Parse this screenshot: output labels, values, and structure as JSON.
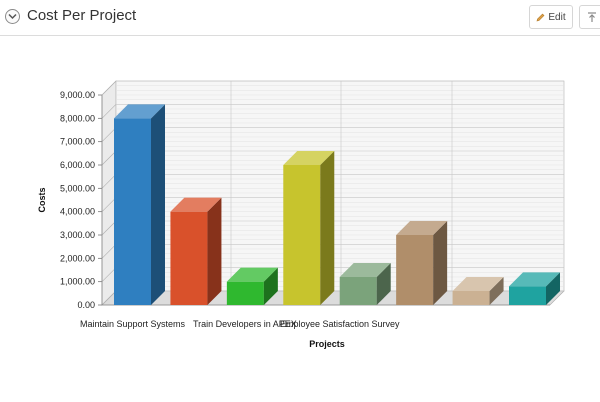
{
  "region": {
    "title": "Cost Per Project",
    "edit_label": "Edit",
    "icons": {
      "collapse": "chevron-down-icon",
      "edit": "pencil-icon",
      "top": "arrow-top-icon"
    }
  },
  "chart_data": {
    "type": "bar",
    "title": "",
    "xlabel": "Projects",
    "ylabel": "Costs",
    "ylim": [
      0,
      9000
    ],
    "yticks": [
      "0.00",
      "1,000.00",
      "2,000.00",
      "3,000.00",
      "4,000.00",
      "5,000.00",
      "6,000.00",
      "7,000.00",
      "8,000.00",
      "9,000.00"
    ],
    "xtick_labels": [
      "Maintain Support Systems",
      "Train Developers in APEX",
      "Employee Satisfaction Survey"
    ],
    "grid": true,
    "three_d": true,
    "values": [
      8000,
      4000,
      1000,
      6000,
      1200,
      3000,
      600,
      800
    ],
    "colors": [
      "#2f7fc0",
      "#d9512b",
      "#2fb82f",
      "#c7c42d",
      "#7ba37b",
      "#b08e6a",
      "#cbb193",
      "#1fa3a0"
    ]
  }
}
